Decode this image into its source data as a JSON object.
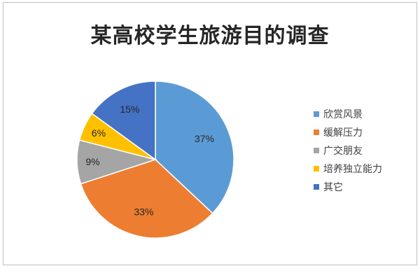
{
  "chart_data": {
    "type": "pie",
    "title": "某高校学生旅游目的调查",
    "categories": [
      "欣赏风景",
      "缓解压力",
      "广交朋友",
      "培养独立能力",
      "其它"
    ],
    "values": [
      37,
      33,
      9,
      6,
      15
    ],
    "labels": [
      "37%",
      "33%",
      "9%",
      "6%",
      "15%"
    ],
    "colors": [
      "#5b9bd5",
      "#ed7d31",
      "#a5a5a5",
      "#ffc000",
      "#4472c4"
    ],
    "legend_position": "right",
    "start": "12 o'clock",
    "direction": "clockwise"
  }
}
